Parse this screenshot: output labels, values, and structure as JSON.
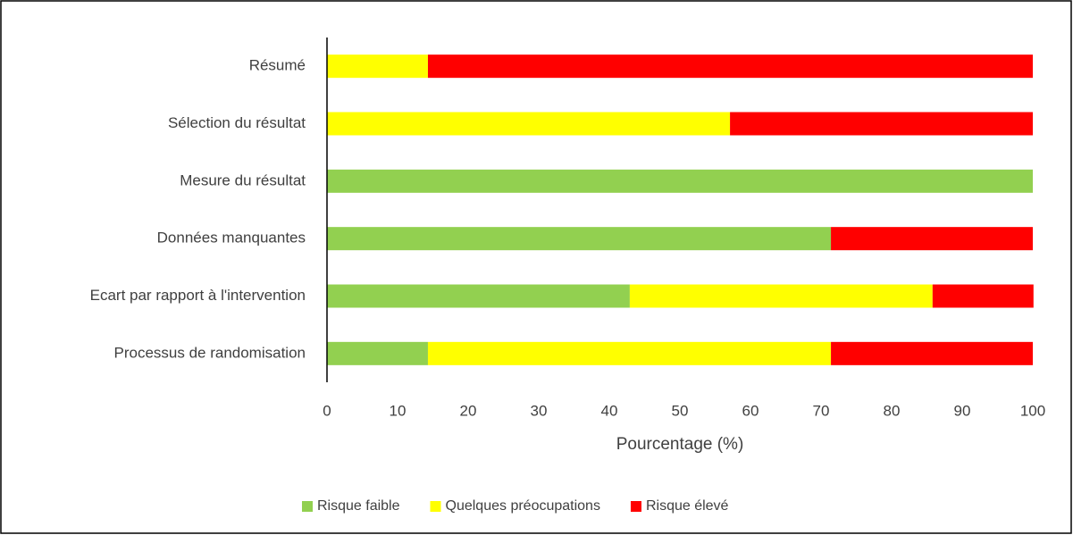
{
  "chart_data": {
    "type": "stacked-barh",
    "categories": [
      "Résumé",
      "Sélection du résultat",
      "Mesure du résultat",
      "Données manquantes",
      "Ecart par rapport à l'intervention",
      "Processus de randomisation"
    ],
    "series": [
      {
        "name": "Risque faible",
        "color": "#92d050",
        "values": [
          0,
          0,
          100,
          71.4,
          42.9,
          14.3
        ]
      },
      {
        "name": "Quelques préocupations",
        "color": "#ffff00",
        "values": [
          14.3,
          57.1,
          0,
          0,
          42.9,
          57.1
        ]
      },
      {
        "name": "Risque élevé",
        "color": "#ff0000",
        "values": [
          85.7,
          42.9,
          0,
          28.6,
          14.3,
          28.6
        ]
      }
    ],
    "xlabel": "Pourcentage (%)",
    "xlim": [
      0,
      100
    ],
    "xticks": [
      0,
      10,
      20,
      30,
      40,
      50,
      60,
      70,
      80,
      90,
      100
    ],
    "legend": "bottom"
  }
}
